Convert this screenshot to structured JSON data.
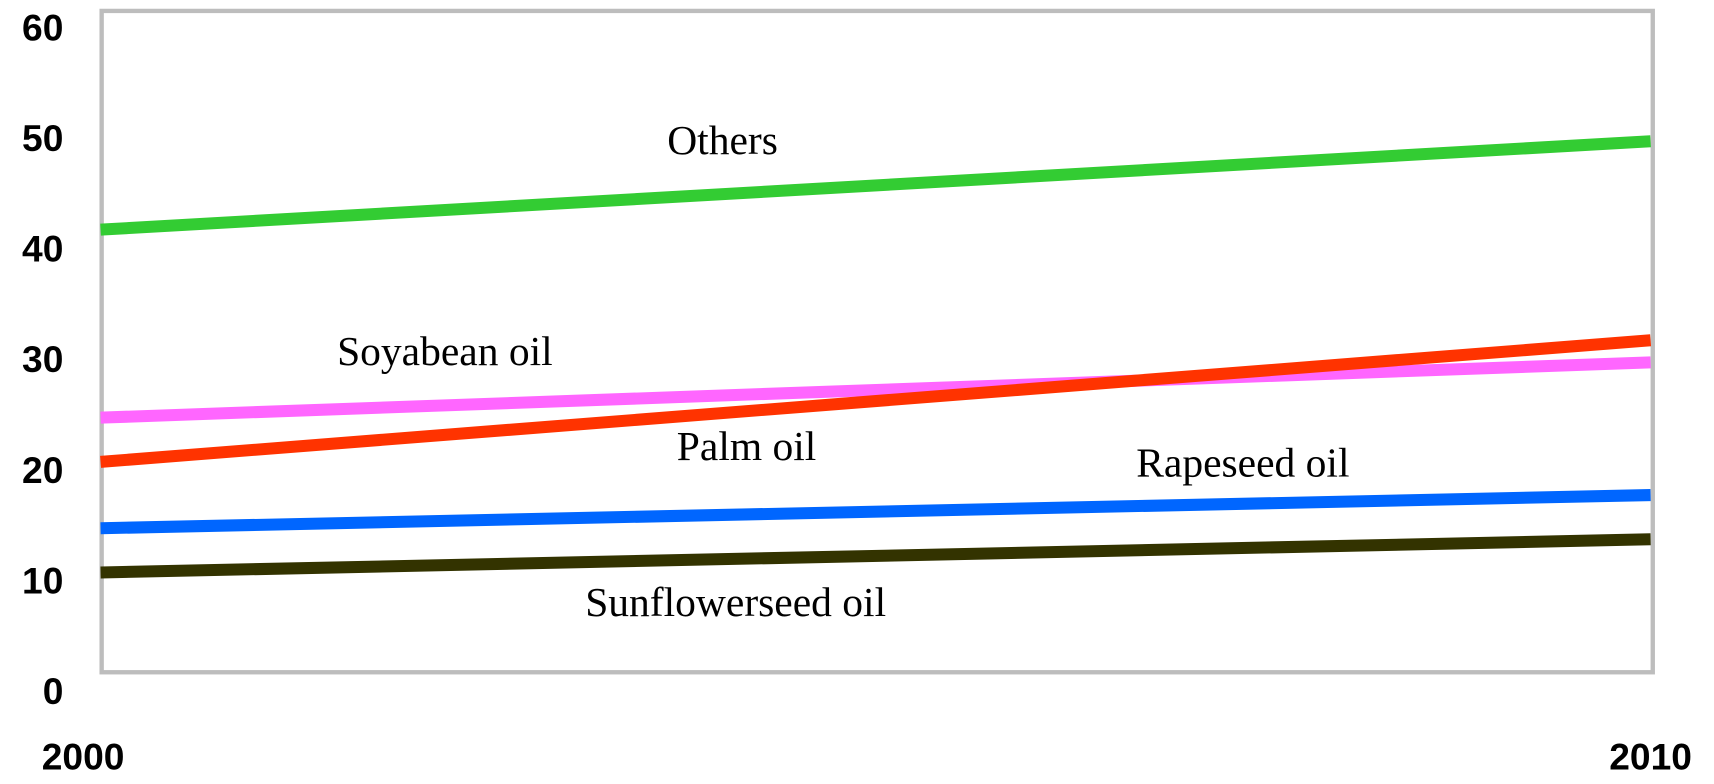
{
  "chart_data": {
    "type": "line",
    "x": [
      2000,
      2010
    ],
    "series": [
      {
        "name": "Others",
        "color": "#33cc33",
        "values": [
          42,
          50
        ]
      },
      {
        "name": "Soyabean oil",
        "color": "#ff66ff",
        "values": [
          25,
          30
        ]
      },
      {
        "name": "Palm oil",
        "color": "#ff3300",
        "values": [
          21,
          32
        ]
      },
      {
        "name": "Rapeseed oil",
        "color": "#0066ff",
        "values": [
          15,
          18
        ]
      },
      {
        "name": "Sunflowerseed oil",
        "color": "#333300",
        "values": [
          11,
          14
        ]
      }
    ],
    "xlim": [
      2000,
      2010
    ],
    "xticks": [
      2000,
      2010
    ],
    "ylim": [
      0,
      60
    ],
    "yticks": [
      0,
      10,
      20,
      30,
      40,
      50,
      60
    ],
    "grid": false
  }
}
